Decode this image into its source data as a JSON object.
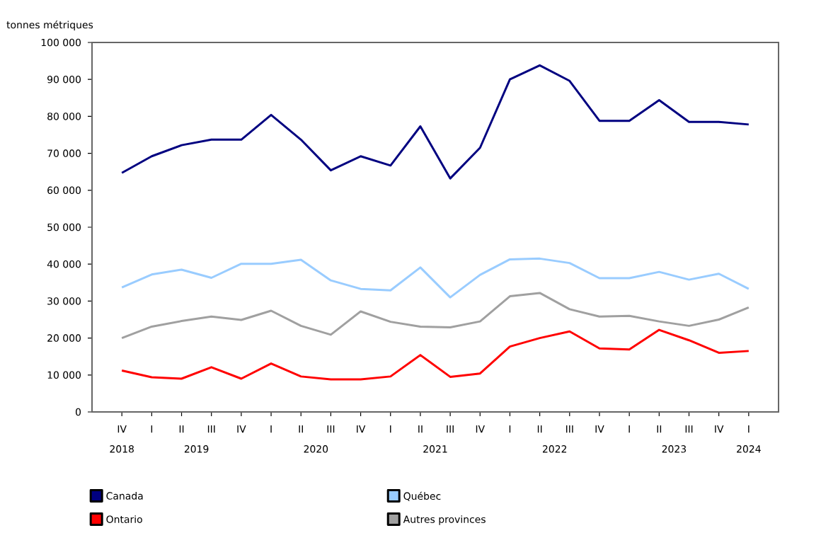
{
  "chart_data": {
    "type": "line",
    "ylabel": "tonnes métriques",
    "categories": [
      "IV",
      "I",
      "II",
      "III",
      "IV",
      "I",
      "II",
      "III",
      "IV",
      "I",
      "II",
      "III",
      "IV",
      "I",
      "II",
      "III",
      "IV",
      "I",
      "II",
      "III",
      "IV",
      "I"
    ],
    "annotations": [
      "2018",
      "2019",
      "2020",
      "2021",
      "2022",
      "2023",
      "2024"
    ],
    "ylim": [
      0,
      100000
    ],
    "yticks": [
      0,
      {
        "value": 10000,
        "label": "10 000"
      },
      {
        "value": 20000,
        "label": "20 000"
      },
      {
        "value": 30000,
        "label": "30 000"
      },
      {
        "value": 40000,
        "label": "40 000"
      },
      {
        "value": 50000,
        "label": "50 000"
      },
      {
        "value": 60000,
        "label": "60 000"
      },
      {
        "value": 70000,
        "label": "70 000"
      },
      {
        "value": 80000,
        "label": "80 000"
      },
      {
        "value": 90000,
        "label": "90 000"
      },
      {
        "value": 100000,
        "label": "100 000"
      }
    ],
    "grid": false,
    "legend": "bottom",
    "marker": "none",
    "line_style": "solid",
    "series": [
      {
        "name": "Canada",
        "color": "#000080",
        "values": [
          64700,
          69200,
          72200,
          73700,
          73700,
          80400,
          73700,
          65400,
          69200,
          66700,
          77300,
          63200,
          71500,
          90000,
          93800,
          89600,
          78800,
          78800,
          84400,
          78500,
          78500,
          77800
        ]
      },
      {
        "name": "Québec",
        "color": "#99ccff",
        "values": [
          33700,
          37200,
          38500,
          36300,
          40100,
          40100,
          41200,
          35600,
          33300,
          32900,
          39100,
          31000,
          37100,
          41300,
          41500,
          40300,
          36200,
          36200,
          37900,
          35800,
          37400,
          33300
        ]
      },
      {
        "name": "Ontario",
        "color": "#ff0000",
        "values": [
          11200,
          9400,
          9000,
          12100,
          9000,
          13100,
          9600,
          8800,
          8800,
          9600,
          15400,
          9500,
          10400,
          17700,
          20000,
          21800,
          17200,
          16900,
          22200,
          19400,
          16000,
          16500
        ]
      },
      {
        "name": "Autres provinces",
        "color": "#a0a0a0",
        "values": [
          20000,
          23100,
          24600,
          25800,
          24900,
          27400,
          23300,
          20900,
          27200,
          24400,
          23100,
          22900,
          24500,
          31300,
          32200,
          27800,
          25800,
          26000,
          24500,
          23300,
          25000,
          28300
        ]
      }
    ]
  }
}
